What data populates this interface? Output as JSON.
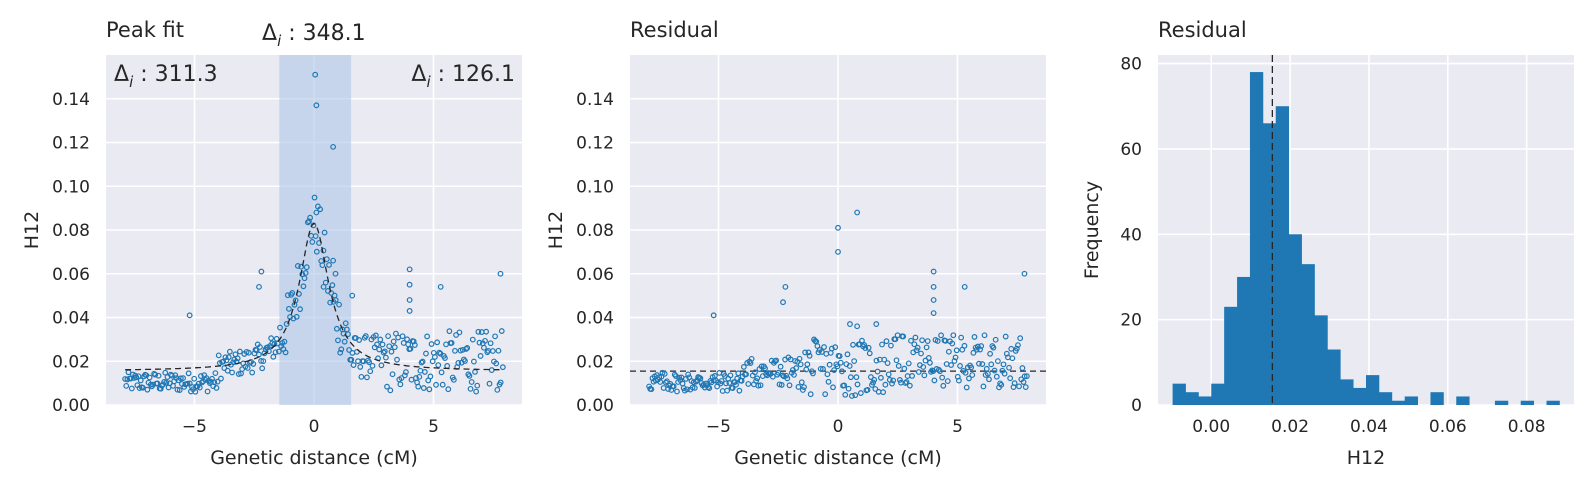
{
  "chart_data": [
    {
      "type": "scatter",
      "title": "Peak fit",
      "xlabel": "Genetic distance (cM)",
      "ylabel": "H12",
      "xlim": [
        -8.7,
        8.7
      ],
      "ylim": [
        0,
        0.16
      ],
      "xticks": [
        "−5",
        "0",
        "5"
      ],
      "xtick_values": [
        -5,
        0,
        5
      ],
      "yticks": [
        "0.00",
        "0.02",
        "0.04",
        "0.06",
        "0.08",
        "0.10",
        "0.12",
        "0.14"
      ],
      "ytick_values": [
        0,
        0.02,
        0.04,
        0.06,
        0.08,
        0.1,
        0.12,
        0.14
      ],
      "grid": true,
      "highlight_span": [
        -1.45,
        1.55
      ],
      "highlight_color": "#aec7e8",
      "annotations": [
        {
          "delta": "Δ",
          "sub": "i",
          "text": " : 311.3",
          "where": "top-left"
        },
        {
          "delta": "Δ",
          "sub": "i",
          "text": " : 348.1",
          "where": "above-center"
        },
        {
          "delta": "Δ",
          "sub": "i",
          "text": " : 126.1",
          "where": "top-right"
        }
      ],
      "fit_curve": {
        "style": "dashed",
        "baseline": 0.0155,
        "peak": 0.083,
        "center": 0.0
      },
      "outliers": [
        [
          0.05,
          0.151
        ],
        [
          0.1,
          0.137
        ],
        [
          0.8,
          0.118
        ],
        [
          -5.2,
          0.041
        ],
        [
          -2.2,
          0.061
        ],
        [
          -2.3,
          0.054
        ],
        [
          4.0,
          0.062
        ],
        [
          4.0,
          0.055
        ],
        [
          4.0,
          0.048
        ],
        [
          5.3,
          0.054
        ],
        [
          7.8,
          0.06
        ],
        [
          4.0,
          0.043
        ],
        [
          1.6,
          0.05
        ],
        [
          0.8,
          0.066
        ],
        [
          0.9,
          0.06
        ],
        [
          0.4,
          0.054
        ],
        [
          0.1,
          0.088
        ]
      ]
    },
    {
      "type": "scatter",
      "title": "Residual",
      "xlabel": "Genetic distance (cM)",
      "ylabel": "H12",
      "xlim": [
        -8.7,
        8.7
      ],
      "ylim": [
        0,
        0.16
      ],
      "xticks": [
        "−5",
        "0",
        "5"
      ],
      "xtick_values": [
        -5,
        0,
        5
      ],
      "yticks": [
        "0.00",
        "0.02",
        "0.04",
        "0.06",
        "0.08",
        "0.10",
        "0.12",
        "0.14"
      ],
      "ytick_values": [
        0,
        0.02,
        0.04,
        0.06,
        0.08,
        0.1,
        0.12,
        0.14
      ],
      "grid": true,
      "reference_line": 0.0155,
      "outliers": [
        [
          0.0,
          0.081
        ],
        [
          0.0,
          0.07
        ],
        [
          0.8,
          0.088
        ],
        [
          -5.2,
          0.041
        ],
        [
          -2.2,
          0.054
        ],
        [
          -2.3,
          0.047
        ],
        [
          4.0,
          0.061
        ],
        [
          4.0,
          0.054
        ],
        [
          4.0,
          0.048
        ],
        [
          5.3,
          0.054
        ],
        [
          7.8,
          0.06
        ],
        [
          4.0,
          0.042
        ],
        [
          0.5,
          0.037
        ],
        [
          0.8,
          0.036
        ],
        [
          1.6,
          0.037
        ]
      ]
    },
    {
      "type": "bar",
      "title": "Residual",
      "xlabel": "H12",
      "ylabel": "Frequency",
      "xlim": [
        -0.0135,
        0.092
      ],
      "ylim": [
        0,
        82
      ],
      "xticks": [
        "0.00",
        "0.02",
        "0.04",
        "0.06",
        "0.08"
      ],
      "xtick_values": [
        0,
        0.02,
        0.04,
        0.06,
        0.08
      ],
      "yticks": [
        "0",
        "20",
        "40",
        "60",
        "80"
      ],
      "ytick_values": [
        0,
        20,
        40,
        60,
        80
      ],
      "grid": true,
      "bin_start": -0.0098,
      "bin_width": 0.00327,
      "values": [
        5,
        3,
        2,
        5,
        23,
        30,
        78,
        66,
        70,
        40,
        33,
        21,
        13,
        6,
        4,
        7,
        3,
        1,
        2,
        0,
        3,
        0,
        2,
        0,
        0,
        1,
        0,
        1,
        0,
        1
      ],
      "bar_color": "#1f77b4",
      "reference_line": 0.0155
    }
  ],
  "colors": {
    "point_edge": "#1f77b4",
    "axes_bg": "#eaeaf2",
    "grid": "#ffffff",
    "line": "#262626"
  }
}
